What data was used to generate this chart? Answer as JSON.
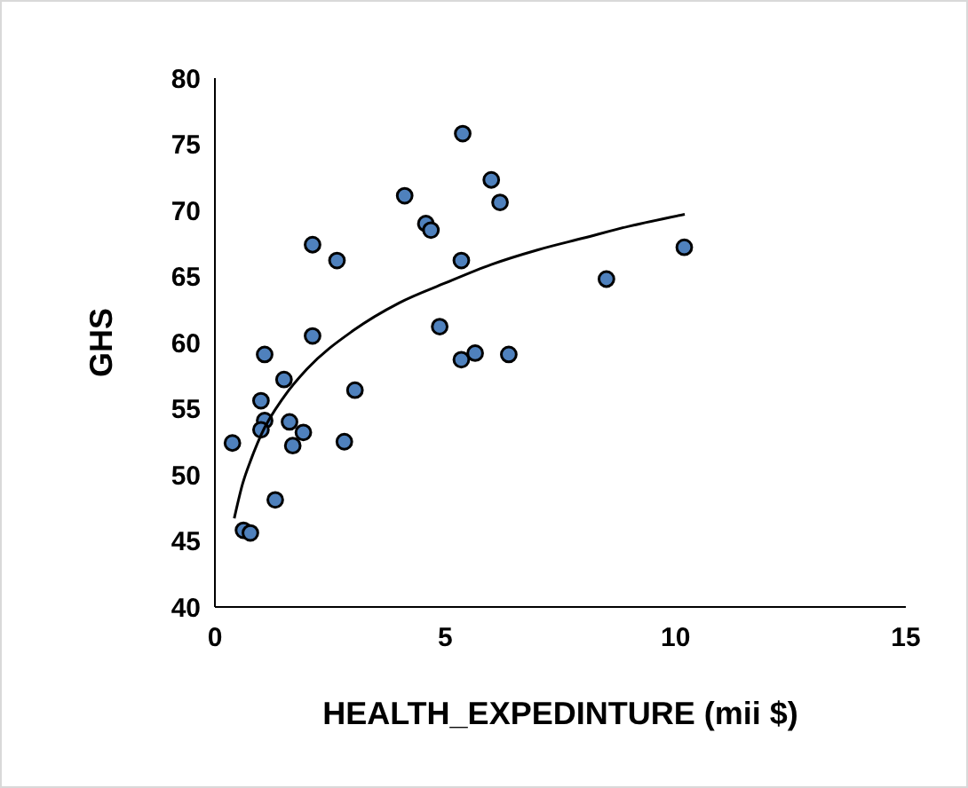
{
  "chart_data": {
    "type": "scatter",
    "xlabel": "HEALTH_EXPEDINTURE (mii $)",
    "ylabel": "GHS",
    "xlim": [
      0,
      15
    ],
    "xticks": [
      0,
      5,
      10,
      15
    ],
    "ylim": [
      40,
      80
    ],
    "yticks": [
      40,
      45,
      50,
      55,
      60,
      65,
      70,
      75,
      80
    ],
    "grid": false,
    "series": [
      {
        "color": "#4f81bd",
        "marker": "circle",
        "x": [
          0.38,
          0.62,
          0.77,
          1.31,
          1.08,
          1.0,
          1.08,
          1.0,
          1.5,
          1.62,
          1.92,
          1.69,
          2.12,
          2.12,
          2.65,
          3.04,
          2.81,
          4.12,
          4.58,
          4.69,
          6.0,
          6.19,
          5.35,
          4.88,
          8.5,
          5.35,
          5.65,
          6.38,
          5.38,
          10.19
        ],
        "values": [
          52.4,
          45.8,
          45.6,
          48.1,
          59.1,
          55.6,
          54.1,
          53.4,
          57.2,
          54.0,
          53.2,
          52.2,
          60.5,
          67.4,
          66.2,
          56.4,
          52.5,
          71.1,
          69.0,
          68.5,
          72.3,
          70.6,
          66.2,
          61.2,
          64.8,
          58.7,
          59.2,
          59.1,
          75.8,
          67.2
        ]
      },
      {
        "type": "line",
        "color": "#000000",
        "marker": "none",
        "line_style": "solid",
        "x": [
          0.42,
          0.6,
          0.8,
          1,
          1.5,
          2,
          3,
          4,
          5,
          6,
          7,
          8,
          9,
          10.2
        ],
        "values": [
          46.7,
          49.3,
          51.3,
          53.0,
          55.9,
          58.0,
          60.9,
          63.0,
          64.5,
          65.9,
          67.0,
          67.9,
          68.8,
          69.7
        ]
      }
    ]
  }
}
